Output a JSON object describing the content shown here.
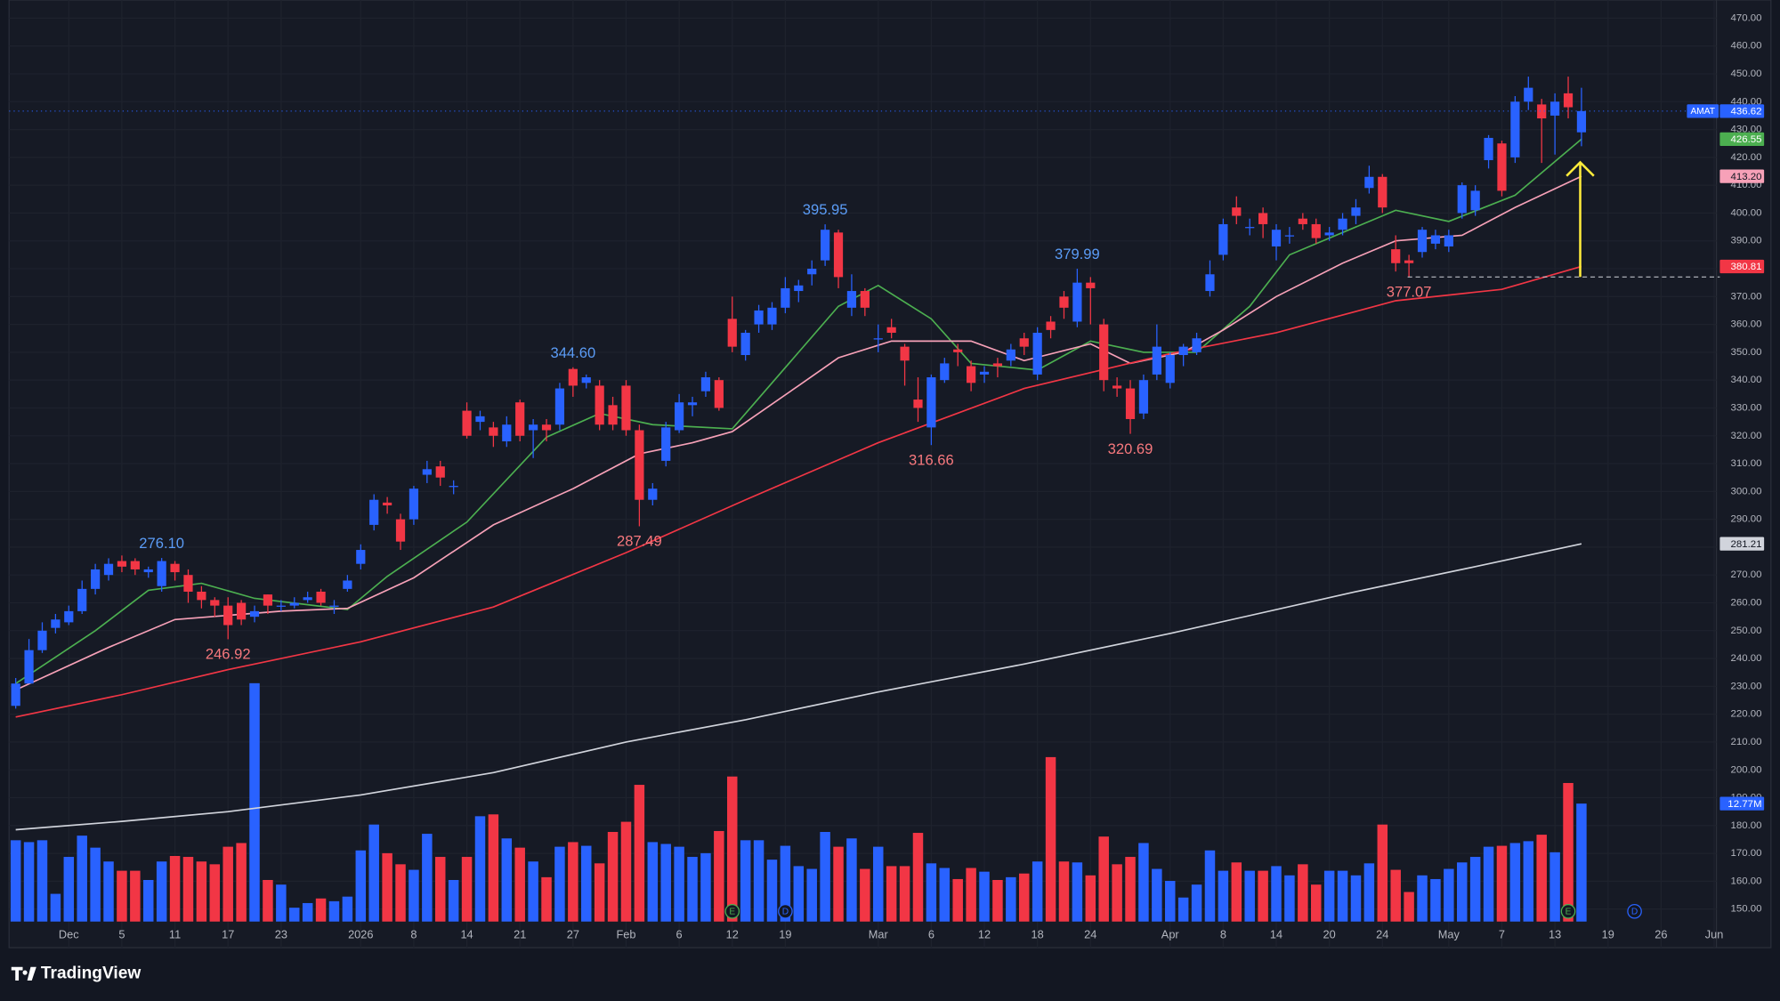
{
  "brand": "TradingView",
  "chart_data": {
    "type": "candlestick",
    "ticker": "AMAT",
    "up_color": "#2962ff",
    "down_color": "#f23645",
    "grid": true,
    "xlim": [
      -0.5,
      128
    ],
    "ylim": [
      150,
      470
    ],
    "yticks": [
      {
        "value": 150,
        "label": "150.00"
      },
      {
        "value": 160,
        "label": "160.00"
      },
      {
        "value": 170,
        "label": "170.00"
      },
      {
        "value": 180,
        "label": "180.00"
      },
      {
        "value": 190,
        "label": "190.00"
      },
      {
        "value": 200,
        "label": "200.00"
      },
      {
        "value": 210,
        "label": "210.00"
      },
      {
        "value": 220,
        "label": "220.00"
      },
      {
        "value": 230,
        "label": "230.00"
      },
      {
        "value": 240,
        "label": "240.00"
      },
      {
        "value": 250,
        "label": "250.00"
      },
      {
        "value": 260,
        "label": "260.00"
      },
      {
        "value": 270,
        "label": "270.00"
      },
      {
        "value": 280,
        "label": "280.00"
      },
      {
        "value": 290,
        "label": "290.00"
      },
      {
        "value": 300,
        "label": "300.00"
      },
      {
        "value": 310,
        "label": "310.00"
      },
      {
        "value": 320,
        "label": "320.00"
      },
      {
        "value": 330,
        "label": "330.00"
      },
      {
        "value": 340,
        "label": "340.00"
      },
      {
        "value": 350,
        "label": "350.00"
      },
      {
        "value": 360,
        "label": "360.00"
      },
      {
        "value": 370,
        "label": "370.00"
      },
      {
        "value": 380,
        "label": "380.00"
      },
      {
        "value": 390,
        "label": "390.00"
      },
      {
        "value": 400,
        "label": "400.00"
      },
      {
        "value": 410,
        "label": "410.00"
      },
      {
        "value": 420,
        "label": "420.00"
      },
      {
        "value": 430,
        "label": "430.00"
      },
      {
        "value": 440,
        "label": "440.00"
      },
      {
        "value": 450,
        "label": "450.00"
      },
      {
        "value": 460,
        "label": "460.00"
      },
      {
        "value": 470,
        "label": "470.00"
      }
    ],
    "xticks": [
      {
        "value": 4,
        "label": "Dec"
      },
      {
        "value": 8,
        "label": "5"
      },
      {
        "value": 12,
        "label": "11"
      },
      {
        "value": 16,
        "label": "17"
      },
      {
        "value": 20,
        "label": "23"
      },
      {
        "value": 26,
        "label": "2026"
      },
      {
        "value": 30,
        "label": "8"
      },
      {
        "value": 34,
        "label": "14"
      },
      {
        "value": 38,
        "label": "21"
      },
      {
        "value": 42,
        "label": "27"
      },
      {
        "value": 46,
        "label": "Feb"
      },
      {
        "value": 50,
        "label": "6"
      },
      {
        "value": 54,
        "label": "12"
      },
      {
        "value": 58,
        "label": "19"
      },
      {
        "value": 65,
        "label": "Mar"
      },
      {
        "value": 69,
        "label": "6"
      },
      {
        "value": 73,
        "label": "12"
      },
      {
        "value": 77,
        "label": "18"
      },
      {
        "value": 81,
        "label": "24"
      },
      {
        "value": 87,
        "label": "Apr"
      },
      {
        "value": 91,
        "label": "8"
      },
      {
        "value": 95,
        "label": "14"
      },
      {
        "value": 99,
        "label": "20"
      },
      {
        "value": 103,
        "label": "24"
      },
      {
        "value": 108,
        "label": "May"
      },
      {
        "value": 112,
        "label": "7"
      },
      {
        "value": 116,
        "label": "13"
      },
      {
        "value": 120,
        "label": "19"
      },
      {
        "value": 124,
        "label": "26"
      },
      {
        "value": 128,
        "label": "Jun"
      }
    ],
    "open": [
      223,
      231,
      243,
      251,
      253,
      257,
      265,
      270,
      275,
      275,
      271,
      266,
      274,
      270,
      264,
      261,
      259,
      260,
      255,
      263,
      259,
      259,
      261,
      264,
      259,
      265,
      274,
      288,
      296,
      290,
      290,
      306,
      309,
      302,
      329,
      325,
      323,
      318,
      332,
      322,
      324,
      324,
      344,
      339,
      338,
      331,
      338,
      322,
      297,
      311,
      322,
      331,
      336,
      340,
      362,
      349,
      360,
      360,
      366,
      372,
      378,
      383,
      393,
      366,
      372,
      355,
      359,
      352,
      333,
      323,
      340,
      351,
      345,
      342,
      346,
      347,
      355,
      342,
      361,
      370,
      361,
      375,
      360,
      338,
      337,
      328,
      342,
      339,
      349,
      350,
      372,
      385,
      402,
      395,
      400,
      388,
      392,
      398,
      396,
      392,
      394,
      399,
      409,
      413,
      387,
      383,
      386,
      389,
      388,
      400,
      401,
      419,
      425,
      420,
      440,
      439,
      435,
      443,
      429
    ],
    "high": [
      233,
      247,
      253,
      256,
      259,
      268,
      274,
      276,
      277,
      276,
      273,
      276.1,
      275,
      272,
      266,
      262,
      262,
      261,
      259,
      263,
      261,
      262,
      264,
      265,
      261,
      270,
      281,
      299,
      298,
      292,
      302,
      311,
      311,
      304,
      332,
      329,
      325,
      327,
      333,
      326,
      326,
      339,
      344.6,
      342,
      340,
      334,
      340,
      324,
      303,
      325,
      335,
      334,
      343,
      341,
      370,
      358,
      367,
      368,
      377,
      376,
      383,
      395.95,
      394,
      378,
      373,
      360,
      362,
      353,
      341,
      342,
      348,
      353,
      347,
      345,
      348,
      353,
      357,
      359,
      363,
      372,
      379.99,
      377,
      362,
      341,
      340,
      342,
      360,
      350,
      353,
      357,
      383,
      398,
      406,
      398,
      402,
      396,
      395,
      400,
      398,
      395,
      400,
      405,
      417,
      414,
      392,
      385,
      395,
      394,
      394,
      411,
      410,
      428,
      426,
      442,
      449,
      441,
      443,
      449,
      445
    ],
    "low": [
      222,
      234,
      242,
      249,
      252,
      256,
      263,
      268,
      271,
      270,
      269,
      264,
      268,
      260,
      258,
      255,
      246.92,
      252,
      253,
      256,
      257,
      258,
      260,
      259,
      256,
      264,
      272,
      286,
      292,
      279,
      288,
      303,
      302,
      299,
      319,
      322,
      316,
      316,
      318,
      312,
      318,
      322,
      334,
      337,
      322,
      322,
      320,
      287.49,
      295,
      309,
      321,
      327,
      334,
      329,
      350,
      347,
      357,
      358,
      364,
      368,
      374,
      381,
      373,
      363,
      363,
      350,
      355,
      338,
      325,
      316.66,
      339,
      345,
      336,
      339,
      341,
      345,
      349,
      340,
      355,
      362,
      359,
      360,
      336,
      334,
      320.69,
      326,
      340,
      337,
      345,
      349,
      370,
      383,
      396,
      392,
      391,
      383,
      389,
      394,
      389,
      390,
      392,
      396,
      407,
      400,
      379,
      377.07,
      384,
      387,
      386,
      398,
      399,
      416,
      406,
      418,
      437,
      418,
      421,
      434,
      424
    ],
    "close": [
      231,
      243,
      250,
      254,
      257,
      265,
      272,
      274,
      273,
      272,
      272,
      275,
      271,
      264,
      261,
      259,
      252,
      254,
      257,
      259,
      259,
      260,
      262,
      260,
      259,
      268,
      279,
      297,
      295,
      282,
      301,
      308,
      305,
      302,
      320,
      327,
      320,
      324,
      320,
      324,
      322,
      337,
      338,
      341,
      324,
      324,
      322,
      297,
      301,
      323,
      332,
      332,
      341,
      330,
      352,
      357,
      365,
      366,
      373,
      374,
      380,
      394,
      377,
      372,
      366,
      355,
      357,
      347,
      330,
      341,
      346,
      350,
      339,
      343,
      345,
      351,
      352,
      357,
      358,
      366,
      375,
      373,
      340,
      337,
      326,
      340,
      352,
      349,
      352,
      355,
      378,
      396,
      399,
      395,
      396,
      394,
      392,
      396,
      391,
      393,
      398,
      402,
      413,
      402,
      382,
      382,
      394,
      392,
      392,
      410,
      408,
      427,
      408,
      440,
      445,
      434,
      440,
      438,
      436.62
    ],
    "volume": [
      8.8,
      8.6,
      8.8,
      3.0,
      7.0,
      9.3,
      8.0,
      6.5,
      5.5,
      5.5,
      4.5,
      6.5,
      7.1,
      7.0,
      6.5,
      6.2,
      8.1,
      8.5,
      25.8,
      4.5,
      4.0,
      1.5,
      2.0,
      2.5,
      2.2,
      2.7,
      7.7,
      10.5,
      7.4,
      6.2,
      5.6,
      9.5,
      7.0,
      4.5,
      7.0,
      11.4,
      11.6,
      9.0,
      8.0,
      6.5,
      4.8,
      8.1,
      8.6,
      8.2,
      6.3,
      9.7,
      10.8,
      14.8,
      8.6,
      8.4,
      8.1,
      7.0,
      7.4,
      9.8,
      15.7,
      8.8,
      8.8,
      6.7,
      8.2,
      6.0,
      5.7,
      9.7,
      8.1,
      9.0,
      5.7,
      8.1,
      6.0,
      6.0,
      9.6,
      6.3,
      5.8,
      4.6,
      5.8,
      5.4,
      4.5,
      4.8,
      5.2,
      6.5,
      17.8,
      6.5,
      6.4,
      5.0,
      9.2,
      6.2,
      7.0,
      8.5,
      5.7,
      4.4,
      2.6,
      4.0,
      7.7,
      5.5,
      6.4,
      5.5,
      5.5,
      6.0,
      5.0,
      6.2,
      4.0,
      5.5,
      5.5,
      5.0,
      6.3,
      10.5,
      5.6,
      3.2,
      5.0,
      4.6,
      5.7,
      6.4,
      7.0,
      8.1,
      8.2,
      8.5,
      8.7,
      9.4,
      7.5,
      15.0,
      12.77
    ],
    "volume_label": "12.77M",
    "overlays": [
      {
        "color": "#4caf50",
        "label_text_color": "#ffffff",
        "last_label": "426.55",
        "x": [
          0,
          6,
          10,
          14,
          18,
          25,
          28,
          34,
          40,
          44,
          48,
          54,
          59,
          62,
          65,
          69,
          72,
          77,
          81,
          85,
          89,
          93,
          96,
          101,
          104,
          108,
          113,
          118
        ],
        "values": [
          231,
          250,
          264.5,
          267,
          261.6,
          257.6,
          269.5,
          289,
          319.5,
          328,
          324,
          322.5,
          350,
          366.5,
          374,
          362,
          346,
          343.6,
          354,
          350,
          350,
          366.5,
          385,
          395,
          401,
          397,
          406.4,
          426.55
        ]
      },
      {
        "color": "#f7a1b8",
        "label_text_color": "#131722",
        "last_label": "413.20",
        "x": [
          0,
          7,
          12,
          20,
          25,
          30,
          36,
          42,
          47,
          51,
          54,
          59,
          62,
          66,
          72,
          76,
          81,
          84,
          88,
          91,
          95,
          100,
          104,
          109,
          113,
          118
        ],
        "values": [
          228.7,
          244,
          254,
          257,
          258,
          269,
          288,
          301,
          313.5,
          317.5,
          321.5,
          338,
          348,
          354,
          354,
          347,
          353,
          346,
          350,
          358,
          370,
          382,
          390,
          392,
          402,
          413.2
        ]
      },
      {
        "color": "#f23645",
        "label_text_color": "#ffffff",
        "last_label": "380.81",
        "x": [
          0,
          8,
          16,
          26,
          36,
          46,
          55,
          65,
          76,
          87,
          95,
          104,
          112,
          118
        ],
        "values": [
          219,
          227,
          236,
          246,
          258.5,
          278,
          297,
          317.5,
          337,
          349.5,
          357,
          368.5,
          372.6,
          380.81
        ]
      },
      {
        "color": "#d1d4dc",
        "label_text_color": "#131722",
        "last_label": "281.21",
        "x": [
          0,
          8,
          16,
          26,
          36,
          46,
          55,
          65,
          76,
          87,
          101,
          110,
          118
        ],
        "values": [
          178.5,
          181.5,
          185,
          191,
          199,
          210,
          218,
          228,
          238,
          249,
          264,
          273,
          281.21
        ]
      }
    ],
    "high_label_color": "#5b9cf6",
    "low_label_color": "#f7787d",
    "annotations": [
      {
        "x": 11,
        "value": 276.1,
        "label": "276.10",
        "position": "above"
      },
      {
        "x": 16,
        "value": 246.92,
        "label": "246.92",
        "position": "below"
      },
      {
        "x": 42,
        "value": 344.6,
        "label": "344.60",
        "position": "above"
      },
      {
        "x": 47,
        "value": 287.49,
        "label": "287.49",
        "position": "below"
      },
      {
        "x": 61,
        "value": 395.95,
        "label": "395.95",
        "position": "above"
      },
      {
        "x": 69,
        "value": 316.66,
        "label": "316.66",
        "position": "below"
      },
      {
        "x": 80,
        "value": 379.99,
        "label": "379.99",
        "position": "above"
      },
      {
        "x": 84,
        "value": 320.69,
        "label": "320.69",
        "position": "below"
      },
      {
        "x": 105,
        "value": 377.07,
        "label": "377.07",
        "position": "below"
      }
    ],
    "events": [
      {
        "x": 54,
        "label": "E",
        "color": "#4caf50"
      },
      {
        "x": 58,
        "label": "D",
        "color": "#2962ff"
      },
      {
        "x": 117,
        "label": "E",
        "color": "#4caf50"
      },
      {
        "x": 122,
        "label": "D",
        "color": "#2962ff"
      }
    ]
  }
}
